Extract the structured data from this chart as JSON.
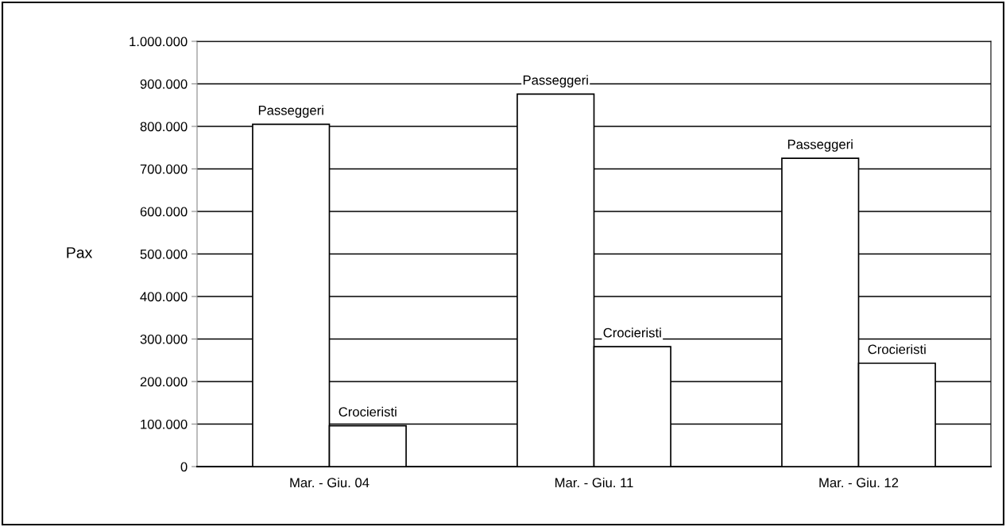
{
  "chart_data": {
    "type": "bar",
    "ylabel": "Pax",
    "categories": [
      "Mar. - Giu. 04",
      "Mar. - Giu. 11",
      "Mar. - Giu. 12"
    ],
    "series": [
      {
        "name": "Passeggeri",
        "color": "#ffffff",
        "values": [
          805000,
          876000,
          725000
        ]
      },
      {
        "name": "Crocieristi",
        "color": "#ffffff",
        "values": [
          96000,
          282000,
          243000
        ]
      }
    ],
    "ylim": [
      0,
      1000000
    ],
    "yticks": [
      0,
      {
        "value": 100000,
        "label": "100.000"
      },
      {
        "value": 200000,
        "label": "200.000"
      },
      {
        "value": 300000,
        "label": "300.000"
      },
      {
        "value": 400000,
        "label": "400.000"
      },
      {
        "value": 500000,
        "label": "500.000"
      },
      {
        "value": 600000,
        "label": "600.000"
      },
      {
        "value": 700000,
        "label": "700.000"
      },
      {
        "value": 800000,
        "label": "800.000"
      },
      {
        "value": 900000,
        "label": "900.000"
      },
      {
        "value": 1000000,
        "label": "1.000.000"
      }
    ],
    "grid": "y",
    "legend": false
  }
}
